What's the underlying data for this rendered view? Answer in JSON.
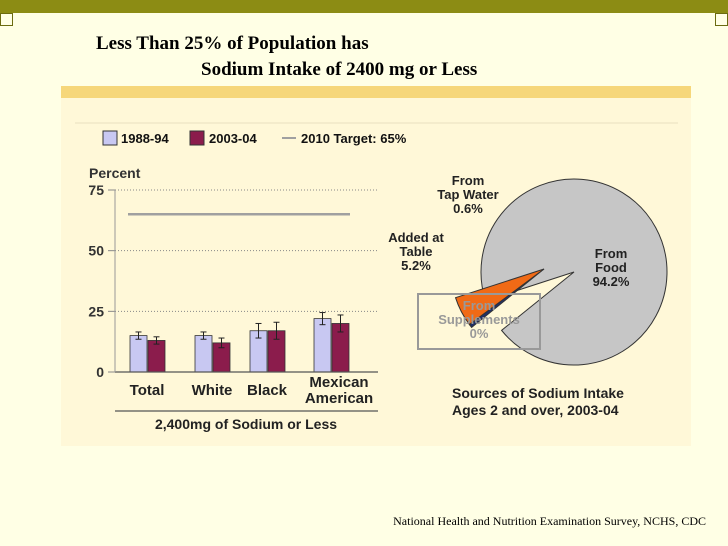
{
  "slide": {
    "title_line1": "Less Than 25% of Population has",
    "title_line2": "Sodium Intake of 2400 mg or Less",
    "source": "National Health and Nutrition Examination Survey, NCHS, CDC"
  },
  "chart_data": [
    {
      "type": "bar",
      "ylabel": "Percent",
      "ylim": [
        0,
        75
      ],
      "yticks": [
        0,
        25,
        50,
        75
      ],
      "categories": [
        "Total",
        "White",
        "Black",
        "Mexican American"
      ],
      "category_lines": [
        [
          "Total"
        ],
        [
          "White"
        ],
        [
          "Black"
        ],
        [
          "Mexican",
          "American"
        ]
      ],
      "series": [
        {
          "name": "1988-94",
          "values": [
            15,
            15,
            17,
            22
          ],
          "err": [
            1.5,
            1.5,
            3,
            2.5
          ],
          "color": "#c8c8f2"
        },
        {
          "name": "2003-04",
          "values": [
            13,
            12,
            17,
            20
          ],
          "err": [
            1.5,
            2,
            3.5,
            3.5
          ],
          "color": "#8b1c4c"
        }
      ],
      "target": {
        "label": "2010 Target: 65%",
        "value": 65,
        "color": "#a0a0a0"
      },
      "xlabel": "2,400mg of Sodium or Less",
      "legend_position": "top-left",
      "grid": "dotted at ticks"
    },
    {
      "type": "pie",
      "title": "Sources of Sodium Intake\nAges 2 and over, 2003-04",
      "title_lines": [
        "Sources of Sodium Intake",
        "Ages 2 and over, 2003-04"
      ],
      "slices": [
        {
          "label": "From Food",
          "label_lines": [
            "From",
            "Food"
          ],
          "value_label": "94.2%",
          "value": 94.2,
          "color": "#c6c6c6"
        },
        {
          "label": "From Tap Water",
          "label_lines": [
            "From",
            "Tap Water"
          ],
          "value_label": "0.6%",
          "value": 0.6,
          "color": "#1f2f6b"
        },
        {
          "label": "Added at Table",
          "label_lines": [
            "Added at",
            "Table"
          ],
          "value_label": "5.2%",
          "value": 5.2,
          "color": "#f06a16"
        },
        {
          "label": "From Supplements",
          "label_lines": [
            "From",
            "Supplements"
          ],
          "value_label": "0%",
          "value": 0,
          "color": "#ffffff"
        }
      ]
    }
  ]
}
